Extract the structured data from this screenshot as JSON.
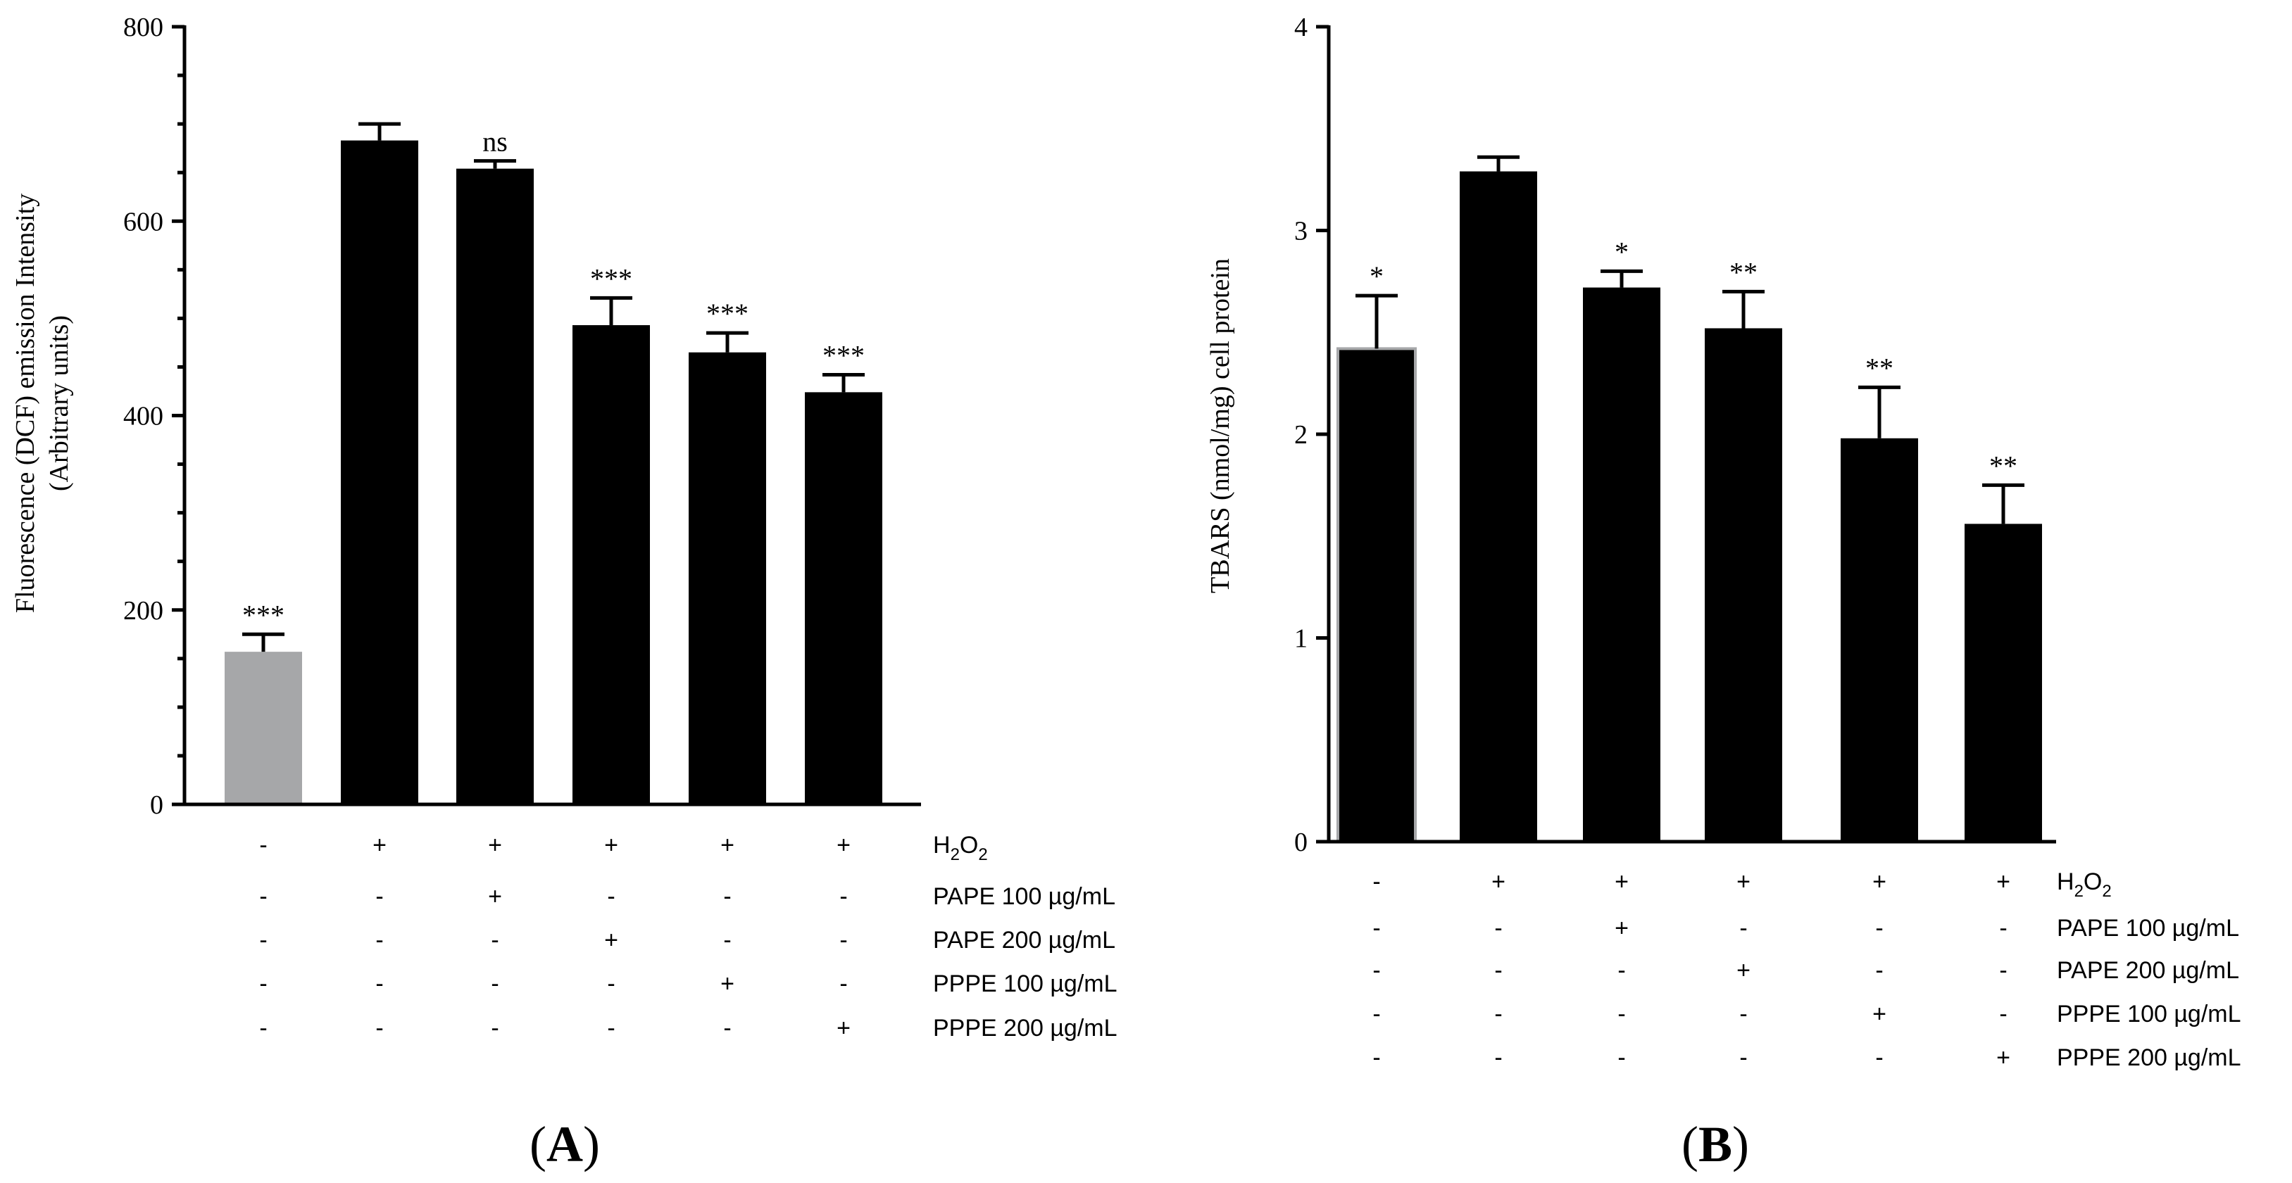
{
  "chart_data": [
    {
      "panel": "A",
      "type": "bar",
      "ylabel": "Fluorescence (DCF) emission Intensity",
      "ylabel_line2": "(Arbitrary units)",
      "ylim": [
        0,
        800
      ],
      "yticks": [
        0,
        200,
        400,
        600,
        800
      ],
      "values": [
        157,
        683,
        654,
        493,
        465,
        424
      ],
      "errors": [
        18,
        17,
        8,
        28,
        20,
        18
      ],
      "bar_colors": [
        "#a6a7a9",
        "#000000",
        "#000000",
        "#000000",
        "#000000",
        "#000000"
      ],
      "significance": [
        "***",
        "",
        "ns",
        "***",
        "***",
        "***"
      ],
      "conditions": [
        {
          "label_main": "H",
          "label_sub": "2",
          "label_main2": "O",
          "label_sub2": "2",
          "marks": [
            "-",
            "+",
            "+",
            "+",
            "+",
            "+"
          ]
        },
        {
          "label": "PAPE 100 µg/mL",
          "marks": [
            "-",
            "-",
            "+",
            "-",
            "-",
            "-"
          ]
        },
        {
          "label": "PAPE 200 µg/mL",
          "marks": [
            "-",
            "-",
            "-",
            "+",
            "-",
            "-"
          ]
        },
        {
          "label": "PPPE 100 µg/mL",
          "marks": [
            "-",
            "-",
            "-",
            "-",
            "+",
            "-"
          ]
        },
        {
          "label": "PPPE 200 µg/mL",
          "marks": [
            "-",
            "-",
            "-",
            "-",
            "-",
            "+"
          ]
        }
      ]
    },
    {
      "panel": "B",
      "type": "bar",
      "ylabel": "TBARS (nmol/mg) cell protein",
      "ylim": [
        0,
        4
      ],
      "yticks": [
        0,
        1,
        2,
        3,
        4
      ],
      "values": [
        2.42,
        3.29,
        2.72,
        2.52,
        1.98,
        1.56
      ],
      "errors": [
        0.26,
        0.07,
        0.08,
        0.18,
        0.25,
        0.19
      ],
      "bar_colors": [
        "#000000",
        "#000000",
        "#000000",
        "#000000",
        "#000000",
        "#000000"
      ],
      "significance": [
        "*",
        "",
        "*",
        "**",
        "**",
        "**"
      ],
      "conditions": [
        {
          "label_main": "H",
          "label_sub": "2",
          "label_main2": "O",
          "label_sub2": "2",
          "marks": [
            "-",
            "+",
            "+",
            "+",
            "+",
            "+"
          ]
        },
        {
          "label": "PAPE 100 µg/mL",
          "marks": [
            "-",
            "-",
            "+",
            "-",
            "-",
            "-"
          ]
        },
        {
          "label": "PAPE 200 µg/mL",
          "marks": [
            "-",
            "-",
            "-",
            "+",
            "-",
            "-"
          ]
        },
        {
          "label": "PPPE 100 µg/mL",
          "marks": [
            "-",
            "-",
            "-",
            "-",
            "+",
            "-"
          ]
        },
        {
          "label": "PPPE 200 µg/mL",
          "marks": [
            "-",
            "-",
            "-",
            "-",
            "-",
            "+"
          ]
        }
      ]
    }
  ],
  "panel_labels": {
    "a": {
      "open": "(",
      "letter": "A",
      "close": ")"
    },
    "b": {
      "open": "(",
      "letter": "B",
      "close": ")"
    }
  }
}
